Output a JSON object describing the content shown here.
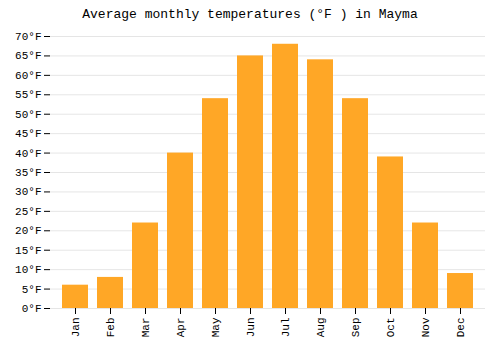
{
  "chart_data": {
    "type": "bar",
    "title": "Average monthly temperatures (°F ) in Mayma",
    "categories": [
      "Jan",
      "Feb",
      "Mar",
      "Apr",
      "May",
      "Jun",
      "Jul",
      "Aug",
      "Sep",
      "Oct",
      "Nov",
      "Dec"
    ],
    "values": [
      6,
      8,
      22,
      40,
      54,
      65,
      68,
      64,
      54,
      39,
      22,
      9
    ],
    "color": "#FFA726",
    "ylim": [
      0,
      70
    ],
    "yticks": [
      {
        "value": 0,
        "label": "0°F"
      },
      {
        "value": 5,
        "label": "5°F"
      },
      {
        "value": 10,
        "label": "10°F"
      },
      {
        "value": 15,
        "label": "15°F"
      },
      {
        "value": 20,
        "label": "20°F"
      },
      {
        "value": 25,
        "label": "25°F"
      },
      {
        "value": 30,
        "label": "30°F"
      },
      {
        "value": 35,
        "label": "35°F"
      },
      {
        "value": 40,
        "label": "40°F"
      },
      {
        "value": 45,
        "label": "45°F"
      },
      {
        "value": 50,
        "label": "50°F"
      },
      {
        "value": 55,
        "label": "55°F"
      },
      {
        "value": 60,
        "label": "60°F"
      },
      {
        "value": 65,
        "label": "65°F"
      },
      {
        "value": 70,
        "label": "70°F"
      }
    ],
    "grid": true
  }
}
